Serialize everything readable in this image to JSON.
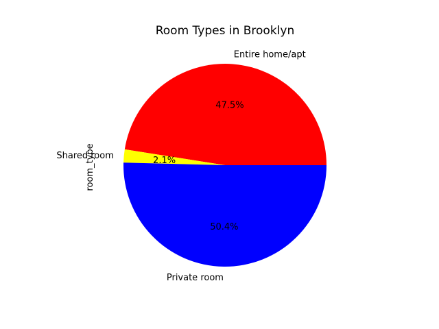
{
  "chart_data": {
    "type": "pie",
    "title": "Room Types in Brooklyn",
    "ylabel": "room_type",
    "slices": [
      {
        "label": "Entire home/apt",
        "percent": 47.5,
        "pct_text": "47.5%",
        "color": "#ff0000"
      },
      {
        "label": "Shared room",
        "percent": 2.1,
        "pct_text": "2.1%",
        "color": "#ffff00"
      },
      {
        "label": "Private room",
        "percent": 50.4,
        "pct_text": "50.4%",
        "color": "#0000ff"
      }
    ]
  }
}
